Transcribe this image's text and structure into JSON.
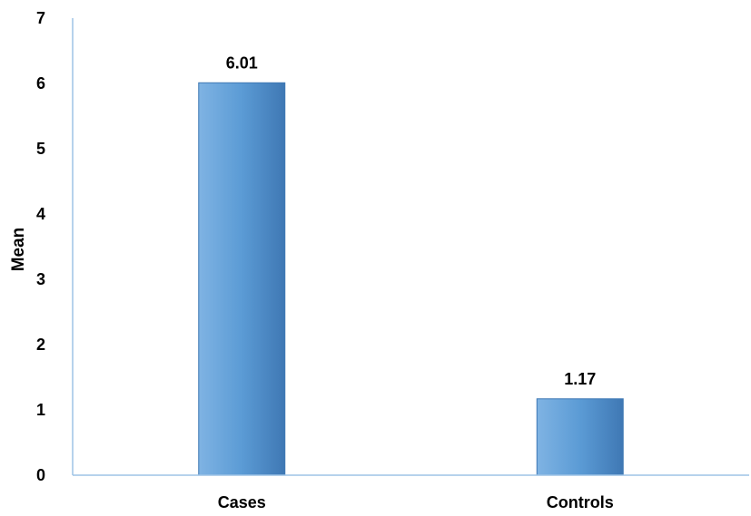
{
  "chart_data": {
    "type": "bar",
    "categories": [
      "Cases",
      "Controls"
    ],
    "values": [
      6.01,
      1.17
    ],
    "data_labels": [
      "6.01",
      "1.17"
    ],
    "xlabel": "",
    "ylabel": "Mean",
    "ylim": [
      0,
      7
    ],
    "yticks": [
      0,
      1,
      2,
      3,
      4,
      5,
      6,
      7
    ],
    "grid": false,
    "legend": "none",
    "colors": {
      "bar_fill": "#5b9bd5",
      "bar_light": "#7fb3e3",
      "bar_dark": "#3f78b4",
      "axis": "#9dc3e6"
    }
  }
}
